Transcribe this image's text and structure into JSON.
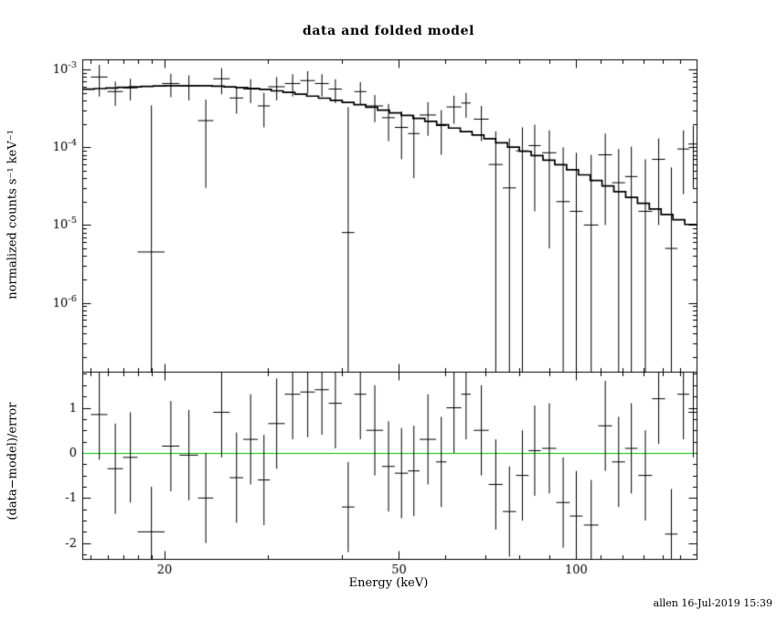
{
  "title": "data and folded model",
  "footer": "allen 16-Jul-2019 15:39",
  "colors": {
    "foreground": "#000000",
    "background": "#ffffff",
    "model_line": "#000000",
    "zero_line": "#00c000"
  },
  "chart_data": {
    "type": "scatter",
    "title": "data and folded model",
    "xlabel": "Energy (keV)",
    "ylabel_top": "normalized counts s⁻¹ keV⁻¹",
    "ylabel_bottom": "(data−model)/error",
    "x_scale": "log",
    "x_range": [
      14.5,
      160
    ],
    "x_ticks_major": [
      20,
      50,
      100
    ],
    "top_panel": {
      "y_scale": "log",
      "y_range": [
        1.3e-07,
        0.00135
      ],
      "y_tick_exponents": [
        -3,
        -4,
        -5,
        -6
      ],
      "model": {
        "energy": [
          15,
          17,
          19,
          21,
          23,
          25,
          27,
          30,
          33,
          36,
          40,
          44,
          48,
          53,
          58,
          64,
          70,
          77,
          85,
          93,
          102,
          112,
          123,
          135,
          148,
          160
        ],
        "value": [
          0.00056,
          0.00059,
          0.00061,
          0.00062,
          0.00062,
          0.00061,
          0.000585,
          0.00055,
          0.0005,
          0.00045,
          0.00039,
          0.00034,
          0.00029,
          0.000245,
          0.000205,
          0.000165,
          0.000135,
          0.000105,
          8e-05,
          6.2e-05,
          4.6e-05,
          3.3e-05,
          2.35e-05,
          1.65e-05,
          1.2e-05,
          9.5e-06
        ]
      },
      "data": {
        "energy": [
          15.5,
          16.5,
          17.5,
          19,
          20.5,
          22,
          23.5,
          25,
          26.5,
          28,
          29.5,
          31,
          33,
          35,
          37,
          39,
          41,
          43,
          45.5,
          48,
          50.5,
          53,
          56,
          59,
          62,
          65,
          69,
          73,
          77,
          81,
          85,
          90,
          95,
          100,
          106,
          112,
          118,
          124,
          131,
          138,
          145,
          152,
          158
        ],
        "xerr": [
          0.5,
          0.5,
          0.5,
          1,
          0.7,
          0.8,
          0.7,
          0.8,
          0.7,
          0.8,
          0.7,
          1,
          1,
          1,
          1,
          1,
          1,
          1,
          1.5,
          1.2,
          1.3,
          1.2,
          1.8,
          1.2,
          1.8,
          1.2,
          2,
          2,
          2,
          2,
          2,
          2.5,
          2.5,
          2.5,
          3,
          3,
          3,
          3,
          3.5,
          3.5,
          3.5,
          3.5,
          3
        ],
        "y": [
          0.0008,
          0.00052,
          0.00058,
          4.5e-06,
          0.00066,
          0.00062,
          0.00022,
          0.00076,
          0.00043,
          0.00056,
          0.00034,
          0.0006,
          0.00066,
          0.00072,
          0.00066,
          0.00056,
          8e-06,
          0.00052,
          0.00034,
          0.00024,
          0.00018,
          0.00015,
          0.00026,
          0.00019,
          0.00033,
          0.00037,
          0.00023,
          6e-05,
          3e-05,
          9e-05,
          0.000105,
          8.5e-05,
          2e-05,
          1.5e-05,
          1e-05,
          8e-05,
          3.5e-05,
          4.2e-05,
          1.5e-05,
          7e-05,
          5e-06,
          9.5e-05,
          0.00011
        ],
        "yerr": [
          0.00035,
          0.00018,
          0.00018,
          0.00034,
          0.00022,
          0.00022,
          0.00019,
          0.00028,
          0.00016,
          0.00019,
          0.00016,
          0.0002,
          0.00021,
          0.00023,
          0.00021,
          0.00019,
          0.00032,
          0.00017,
          0.00013,
          0.00012,
          0.00011,
          0.00011,
          0.00012,
          0.00011,
          0.00013,
          0.00013,
          0.00011,
          0.0001,
          0.0001,
          9e-05,
          9e-05,
          8e-05,
          8e-05,
          7e-05,
          7e-05,
          7e-05,
          6e-05,
          6e-05,
          5.5e-05,
          6e-05,
          5e-05,
          7e-05,
          8e-05
        ]
      }
    },
    "bottom_panel": {
      "y_scale": "linear",
      "y_range": [
        -2.35,
        1.8
      ],
      "y_ticks_major": [
        -2,
        -1,
        0,
        1
      ],
      "residuals": {
        "energy": [
          15.5,
          16.5,
          17.5,
          19,
          20.5,
          22,
          23.5,
          25,
          26.5,
          28,
          29.5,
          31,
          33,
          35,
          37,
          39,
          41,
          43,
          45.5,
          48,
          50.5,
          53,
          56,
          59,
          62,
          65,
          69,
          73,
          77,
          81,
          85,
          90,
          95,
          100,
          106,
          112,
          118,
          124,
          131,
          138,
          145,
          152,
          158
        ],
        "xerr": [
          0.5,
          0.5,
          0.5,
          1,
          0.7,
          0.8,
          0.7,
          0.8,
          0.7,
          0.8,
          0.7,
          1,
          1,
          1,
          1,
          1,
          1,
          1,
          1.5,
          1.2,
          1.3,
          1.2,
          1.8,
          1.2,
          1.8,
          1.2,
          2,
          2,
          2,
          2,
          2,
          2.5,
          2.5,
          2.5,
          3,
          3,
          3,
          3,
          3.5,
          3.5,
          3.5,
          3.5,
          3
        ],
        "value": [
          0.85,
          -0.35,
          -0.1,
          -1.75,
          0.15,
          -0.05,
          -1.0,
          0.9,
          -0.55,
          0.3,
          -0.6,
          0.65,
          1.3,
          1.35,
          1.4,
          1.1,
          -1.2,
          1.3,
          0.5,
          -0.3,
          -0.45,
          -0.4,
          0.3,
          -0.2,
          1.0,
          1.3,
          0.5,
          -0.7,
          -1.3,
          -0.5,
          0.05,
          0.1,
          -1.1,
          -1.4,
          -1.6,
          0.6,
          -0.2,
          0.1,
          -0.5,
          1.2,
          -1.8,
          1.3,
          0.9
        ],
        "err": 1
      }
    }
  }
}
